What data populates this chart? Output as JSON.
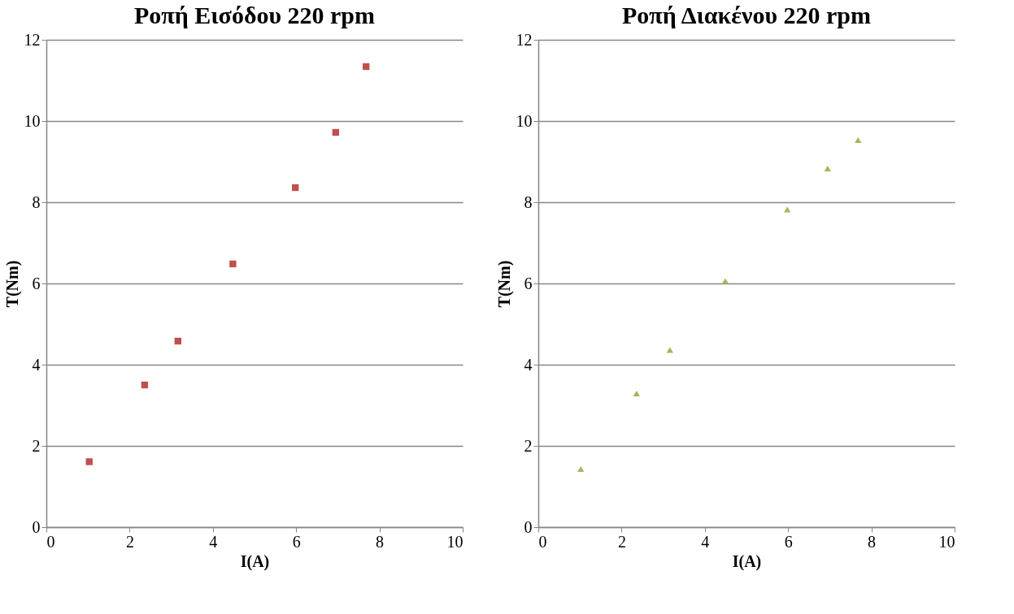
{
  "chart_data": [
    {
      "type": "scatter",
      "title": "Ροπή Εισόδου 220 rpm",
      "xlabel": "I(A)",
      "ylabel": "T(Nm)",
      "x": [
        1.03,
        2.36,
        3.16,
        4.48,
        5.98,
        6.95,
        7.68
      ],
      "series": [
        {
          "color": "#c0504d",
          "values": [
            1.61,
            3.5,
            4.58,
            6.48,
            8.36,
            9.72,
            11.34
          ]
        }
      ],
      "xlim": [
        0,
        10
      ],
      "xticks": [
        0,
        2,
        4,
        6,
        8,
        10
      ],
      "ylim": [
        0,
        12
      ],
      "yticks": [
        0,
        2,
        4,
        6,
        8,
        10,
        12
      ],
      "grid": "y",
      "marker": "square"
    },
    {
      "type": "scatter",
      "title": "Ροπή Διακένου 220 rpm",
      "xlabel": "I(A)",
      "ylabel": "T(Nm)",
      "x": [
        1.02,
        2.36,
        3.16,
        4.49,
        5.98,
        6.95,
        7.68
      ],
      "series": [
        {
          "color": "#9bbb59",
          "values": [
            1.43,
            3.29,
            4.36,
            6.06,
            7.82,
            8.83,
            9.53
          ]
        }
      ],
      "xlim": [
        0,
        10
      ],
      "xticks": [
        0,
        2,
        4,
        6,
        8,
        10
      ],
      "ylim": [
        0,
        12
      ],
      "yticks": [
        0,
        2,
        4,
        6,
        8,
        10,
        12
      ],
      "grid": "y",
      "marker": "triangle"
    }
  ]
}
